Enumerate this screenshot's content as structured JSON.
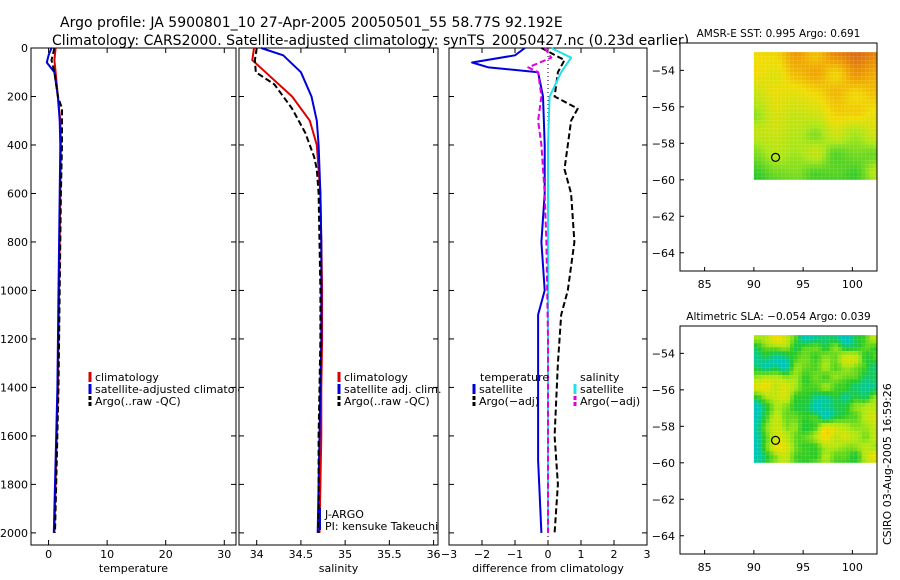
{
  "header": {
    "line1": "Argo profile: JA 5900801_10 27-Apr-2005 20050501_55 58.77S 92.192E",
    "line2": "Climatology: CARS2000. Satellite-adjusted climatology: synTS_20050427.nc (0.23d earlier)"
  },
  "side_label": "CSIRO 03-Aug-2005 16:59:26",
  "colors": {
    "red": "#dd0000",
    "blue": "#0000dd",
    "black": "#000000",
    "cyan": "#22e0e8",
    "magenta": "#dd00dd"
  },
  "chart_data": [
    {
      "type": "line",
      "id": "temperature",
      "xlabel": "temperature",
      "xlim": [
        -3,
        32
      ],
      "ylim": [
        2050,
        0
      ],
      "xticks": [
        0,
        10,
        20,
        30
      ],
      "xticklabels": [
        "0",
        "10",
        "20",
        "30"
      ],
      "yticks": [
        0,
        200,
        400,
        600,
        800,
        1000,
        1200,
        1400,
        1600,
        1800,
        2000
      ],
      "yticklabels": [
        "0",
        "200",
        "400",
        "600",
        "800",
        "1000",
        "1200",
        "1400",
        "1600",
        "1800",
        "2000"
      ],
      "legend": [
        {
          "label": "climatology",
          "color": "red"
        },
        {
          "label": "satellite-adjusted climatology",
          "color": "blue"
        },
        {
          "label": "Argo(..raw -QC)",
          "color": "black"
        }
      ],
      "series": [
        {
          "name": "climatology",
          "color": "red",
          "dash": false,
          "points": [
            [
              1.2,
              0
            ],
            [
              1.0,
              50
            ],
            [
              1.2,
              100
            ],
            [
              1.6,
              200
            ],
            [
              2.0,
              300
            ],
            [
              2.1,
              400
            ],
            [
              2.0,
              600
            ],
            [
              1.9,
              800
            ],
            [
              1.8,
              1000
            ],
            [
              1.6,
              1400
            ],
            [
              1.2,
              1800
            ],
            [
              1.0,
              2000
            ]
          ]
        },
        {
          "name": "satellite-adjusted climatology",
          "color": "blue",
          "dash": false,
          "points": [
            [
              0.5,
              0
            ],
            [
              0.0,
              30
            ],
            [
              -0.3,
              60
            ],
            [
              1.0,
              100
            ],
            [
              1.6,
              200
            ],
            [
              1.9,
              300
            ],
            [
              2.0,
              400
            ],
            [
              1.9,
              600
            ],
            [
              1.8,
              800
            ],
            [
              1.7,
              1000
            ],
            [
              1.5,
              1400
            ],
            [
              1.1,
              1800
            ],
            [
              0.9,
              2000
            ]
          ]
        },
        {
          "name": "Argo(..raw -QC)",
          "color": "black",
          "dash": true,
          "points": [
            [
              1.0,
              0
            ],
            [
              0.5,
              50
            ],
            [
              1.0,
              100
            ],
            [
              1.6,
              200
            ],
            [
              2.3,
              250
            ],
            [
              2.3,
              400
            ],
            [
              2.1,
              600
            ],
            [
              2.0,
              800
            ],
            [
              1.9,
              1000
            ],
            [
              1.7,
              1400
            ],
            [
              1.3,
              1800
            ],
            [
              1.1,
              2000
            ]
          ]
        }
      ]
    },
    {
      "type": "line",
      "id": "salinity",
      "xlabel": "salinity",
      "xlim": [
        33.8,
        36.05
      ],
      "ylim": [
        2050,
        0
      ],
      "xticks": [
        34,
        34.5,
        35,
        35.5,
        36
      ],
      "xticklabels": [
        "34",
        "34.5",
        "35",
        "35.5",
        "36"
      ],
      "yticks": [
        0,
        200,
        400,
        600,
        800,
        1000,
        1200,
        1400,
        1600,
        1800,
        2000
      ],
      "legend": [
        {
          "label": "climatology",
          "color": "red"
        },
        {
          "label": "satellite adj. clim.",
          "color": "blue"
        },
        {
          "label": "Argo(..raw -QC)",
          "color": "black"
        }
      ],
      "annotation": [
        "J-ARGO",
        "PI: kensuke Takeuchi"
      ],
      "series": [
        {
          "name": "climatology",
          "color": "red",
          "dash": false,
          "points": [
            [
              33.97,
              0
            ],
            [
              33.95,
              50
            ],
            [
              34.1,
              100
            ],
            [
              34.4,
              200
            ],
            [
              34.6,
              300
            ],
            [
              34.68,
              400
            ],
            [
              34.72,
              600
            ],
            [
              34.73,
              800
            ],
            [
              34.74,
              1000
            ],
            [
              34.74,
              1200
            ],
            [
              34.73,
              1400
            ],
            [
              34.73,
              1600
            ],
            [
              34.72,
              1800
            ],
            [
              34.71,
              2000
            ]
          ]
        },
        {
          "name": "satellite adj. clim.",
          "color": "blue",
          "dash": false,
          "points": [
            [
              34.05,
              0
            ],
            [
              34.3,
              30
            ],
            [
              34.5,
              100
            ],
            [
              34.62,
              200
            ],
            [
              34.68,
              300
            ],
            [
              34.7,
              400
            ],
            [
              34.72,
              600
            ],
            [
              34.73,
              800
            ],
            [
              34.73,
              1000
            ],
            [
              34.73,
              1200
            ],
            [
              34.72,
              1400
            ],
            [
              34.71,
              1600
            ],
            [
              34.7,
              1800
            ],
            [
              34.69,
              2000
            ]
          ]
        },
        {
          "name": "Argo(..raw -QC)",
          "color": "black",
          "dash": true,
          "points": [
            [
              34.0,
              0
            ],
            [
              33.98,
              50
            ],
            [
              33.99,
              100
            ],
            [
              34.2,
              150
            ],
            [
              34.4,
              250
            ],
            [
              34.55,
              350
            ],
            [
              34.65,
              450
            ],
            [
              34.68,
              500
            ],
            [
              34.7,
              600
            ],
            [
              34.71,
              800
            ],
            [
              34.72,
              1000
            ],
            [
              34.72,
              1200
            ],
            [
              34.71,
              1400
            ],
            [
              34.7,
              1600
            ],
            [
              34.7,
              1800
            ],
            [
              34.7,
              2000
            ]
          ]
        }
      ]
    },
    {
      "type": "line",
      "id": "difference",
      "xlabel": "difference from climatology",
      "xlim": [
        -3,
        3
      ],
      "ylim": [
        2050,
        0
      ],
      "xticks": [
        -3,
        -2,
        -1,
        0,
        1,
        2,
        3
      ],
      "xticklabels": [
        "−3",
        "−2",
        "−1",
        "0",
        "1",
        "2",
        "3"
      ],
      "yticks": [
        0,
        200,
        400,
        600,
        800,
        1000,
        1200,
        1400,
        1600,
        1800,
        2000
      ],
      "legend_left_title": "temperature",
      "legend_right_title": "salinity",
      "legend_left": [
        {
          "label": "satellite",
          "color": "blue"
        },
        {
          "label": "Argo(−adj)",
          "color": "black"
        }
      ],
      "legend_right": [
        {
          "label": "satellite",
          "color": "cyan"
        },
        {
          "label": "Argo(−adj)",
          "color": "magenta"
        }
      ],
      "series": [
        {
          "name": "temperature satellite",
          "color": "blue",
          "dash": false,
          "points": [
            [
              -0.7,
              0
            ],
            [
              -1.0,
              30
            ],
            [
              -2.3,
              60
            ],
            [
              -1.8,
              80
            ],
            [
              -0.3,
              100
            ],
            [
              -0.15,
              200
            ],
            [
              -0.1,
              400
            ],
            [
              -0.1,
              600
            ],
            [
              -0.2,
              800
            ],
            [
              -0.1,
              1000
            ],
            [
              -0.3,
              1100
            ],
            [
              -0.3,
              1400
            ],
            [
              -0.3,
              1700
            ],
            [
              -0.2,
              2000
            ]
          ]
        },
        {
          "name": "temperature Argo(-adj)",
          "color": "black",
          "dash": true,
          "points": [
            [
              -0.2,
              0
            ],
            [
              0.5,
              50
            ],
            [
              0.3,
              100
            ],
            [
              0.2,
              200
            ],
            [
              0.9,
              250
            ],
            [
              0.7,
              300
            ],
            [
              0.6,
              400
            ],
            [
              0.5,
              500
            ],
            [
              0.7,
              600
            ],
            [
              0.8,
              800
            ],
            [
              0.6,
              1000
            ],
            [
              0.4,
              1100
            ],
            [
              0.3,
              1300
            ],
            [
              0.2,
              1600
            ],
            [
              0.3,
              1800
            ],
            [
              0.2,
              2000
            ]
          ]
        },
        {
          "name": "salinity satellite",
          "color": "cyan",
          "dash": false,
          "points": [
            [
              0.1,
              0
            ],
            [
              0.7,
              40
            ],
            [
              0.4,
              100
            ],
            [
              0.05,
              200
            ],
            [
              0.0,
              400
            ],
            [
              0.0,
              800
            ],
            [
              0.0,
              1200
            ],
            [
              0.0,
              1600
            ],
            [
              0.0,
              2000
            ]
          ]
        },
        {
          "name": "salinity Argo(-adj)",
          "color": "magenta",
          "dash": true,
          "points": [
            [
              -0.1,
              0
            ],
            [
              0.1,
              40
            ],
            [
              -0.6,
              80
            ],
            [
              -0.3,
              100
            ],
            [
              -0.2,
              200
            ],
            [
              -0.3,
              300
            ],
            [
              -0.2,
              400
            ],
            [
              -0.1,
              600
            ],
            [
              -0.05,
              800
            ],
            [
              0.0,
              1200
            ],
            [
              0.0,
              2000
            ]
          ]
        }
      ]
    },
    {
      "type": "heatmap",
      "id": "sst",
      "title": "AMSR-E SST: 0.995 Argo: 0.691",
      "xlim": [
        82.5,
        102.5
      ],
      "ylim": [
        -65,
        -52.5
      ],
      "xticks": [
        85,
        90,
        95,
        100
      ],
      "xticklabels": [
        "85",
        "90",
        "95",
        "100"
      ],
      "yticks": [
        -54,
        -56,
        -58,
        -60,
        -62,
        -64
      ],
      "yticklabels": [
        "−54",
        "−56",
        "−58",
        "−60",
        "−62",
        "−64"
      ],
      "data_extent": {
        "lon": [
          90,
          102.5
        ],
        "lat": [
          -60,
          -53
        ]
      },
      "marker": {
        "lon": 92.2,
        "lat": -58.77
      }
    },
    {
      "type": "heatmap",
      "id": "sla",
      "title": "Altimetric SLA: −0.054 Argo: 0.039",
      "xlim": [
        82.5,
        102.5
      ],
      "ylim": [
        -65,
        -52.5
      ],
      "xticks": [
        85,
        90,
        95,
        100
      ],
      "xticklabels": [
        "85",
        "90",
        "95",
        "100"
      ],
      "yticks": [
        -54,
        -56,
        -58,
        -60,
        -62,
        -64
      ],
      "yticklabels": [
        "−54",
        "−56",
        "−58",
        "−60",
        "−62",
        "−64"
      ],
      "data_extent": {
        "lon": [
          90,
          102.5
        ],
        "lat": [
          -60,
          -53
        ]
      },
      "marker": {
        "lon": 92.2,
        "lat": -58.77
      }
    }
  ]
}
